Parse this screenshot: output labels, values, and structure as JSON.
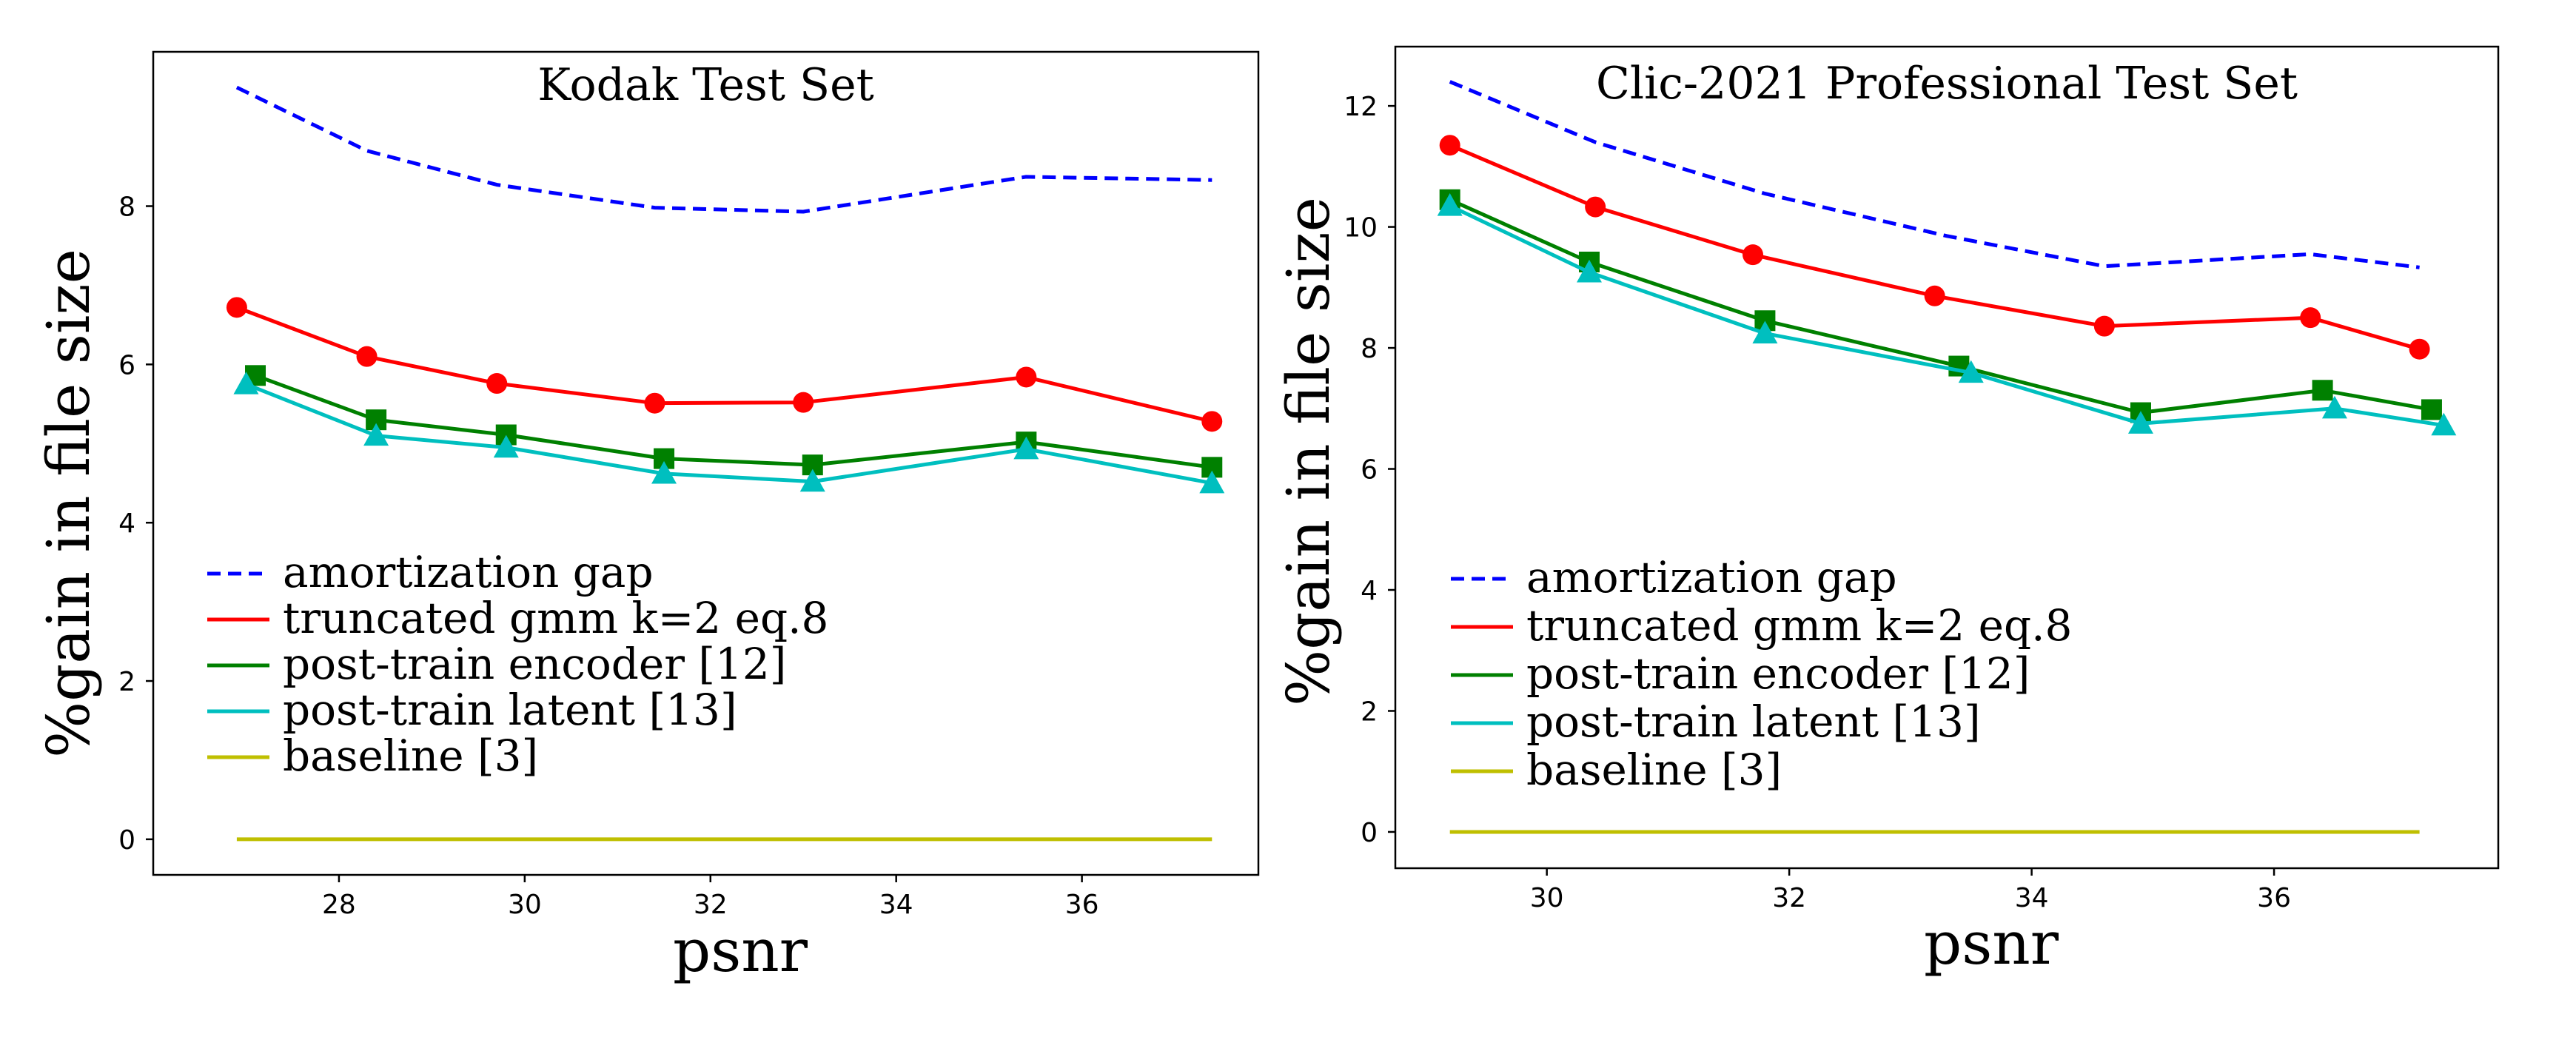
{
  "chart_data": [
    {
      "type": "line",
      "title": "Kodak Test Set",
      "xlabel": "psnr",
      "ylabel": "%gain in file size",
      "xlim": [
        26.0,
        37.9
      ],
      "ylim": [
        -0.45,
        9.95
      ],
      "xticks": [
        28,
        30,
        32,
        34,
        36
      ],
      "yticks": [
        0,
        2,
        4,
        6,
        8
      ],
      "grid": false,
      "legend_position": "lower-left",
      "series": [
        {
          "key": "amortization",
          "name": "amortization gap",
          "color": "#0000ff",
          "style": "dashed",
          "marker": "none",
          "x": [
            26.9,
            28.3,
            29.7,
            31.4,
            33.0,
            35.4,
            37.4
          ],
          "y": [
            9.5,
            8.7,
            8.27,
            7.98,
            7.93,
            8.37,
            8.33
          ]
        },
        {
          "key": "truncated",
          "name": "truncated gmm k=2 eq.8",
          "color": "#ff0000",
          "style": "solid",
          "marker": "circle",
          "x": [
            26.9,
            28.3,
            29.7,
            31.4,
            33.0,
            35.4,
            37.4
          ],
          "y": [
            6.72,
            6.1,
            5.76,
            5.51,
            5.52,
            5.84,
            5.28
          ]
        },
        {
          "key": "encoder",
          "name": "post-train encoder [12]",
          "color": "#008000",
          "style": "solid",
          "marker": "square",
          "x": [
            27.1,
            28.4,
            29.8,
            31.5,
            33.1,
            35.4,
            37.4
          ],
          "y": [
            5.86,
            5.3,
            5.11,
            4.81,
            4.73,
            5.02,
            4.7
          ]
        },
        {
          "key": "latent",
          "name": "post-train latent [13]",
          "color": "#00bfbf",
          "style": "solid",
          "marker": "triangle",
          "x": [
            27.0,
            28.4,
            29.8,
            31.5,
            33.1,
            35.4,
            37.4
          ],
          "y": [
            5.75,
            5.1,
            4.95,
            4.62,
            4.52,
            4.93,
            4.5
          ]
        },
        {
          "key": "baseline",
          "name": "baseline [3]",
          "color": "#bfbf00",
          "style": "solid",
          "marker": "none",
          "x": [
            26.9,
            37.4
          ],
          "y": [
            0,
            0
          ]
        }
      ]
    },
    {
      "type": "line",
      "title": "Clic-2021 Professional Test Set",
      "xlabel": "psnr",
      "ylabel": "%gain in file size",
      "xlim": [
        28.75,
        37.85
      ],
      "ylim": [
        -0.6,
        12.98
      ],
      "xticks": [
        30,
        32,
        34,
        36
      ],
      "yticks": [
        0,
        2,
        4,
        6,
        8,
        10,
        12
      ],
      "grid": false,
      "legend_position": "lower-left",
      "series": [
        {
          "key": "amortization",
          "name": "amortization gap",
          "color": "#0000ff",
          "style": "dashed",
          "marker": "none",
          "x": [
            29.2,
            30.4,
            31.8,
            33.3,
            34.6,
            36.3,
            37.2
          ],
          "y": [
            12.4,
            11.4,
            10.55,
            9.85,
            9.35,
            9.55,
            9.33
          ]
        },
        {
          "key": "truncated",
          "name": "truncated gmm k=2 eq.8",
          "color": "#ff0000",
          "style": "solid",
          "marker": "circle",
          "x": [
            29.2,
            30.4,
            31.7,
            33.2,
            34.6,
            36.3,
            37.2
          ],
          "y": [
            11.35,
            10.33,
            9.54,
            8.86,
            8.36,
            8.5,
            7.98
          ]
        },
        {
          "key": "encoder",
          "name": "post-train encoder [12]",
          "color": "#008000",
          "style": "solid",
          "marker": "square",
          "x": [
            29.2,
            30.35,
            31.8,
            33.4,
            34.9,
            36.4,
            37.3
          ],
          "y": [
            10.45,
            9.42,
            8.45,
            7.7,
            6.93,
            7.3,
            6.98
          ]
        },
        {
          "key": "latent",
          "name": "post-train latent [13]",
          "color": "#00bfbf",
          "style": "solid",
          "marker": "triangle",
          "x": [
            29.2,
            30.35,
            31.8,
            33.5,
            34.9,
            36.5,
            37.4
          ],
          "y": [
            10.35,
            9.25,
            8.24,
            7.59,
            6.75,
            7.0,
            6.72
          ]
        },
        {
          "key": "baseline",
          "name": "baseline [3]",
          "color": "#bfbf00",
          "style": "solid",
          "marker": "none",
          "x": [
            29.2,
            37.2
          ],
          "y": [
            0,
            0
          ]
        }
      ]
    }
  ]
}
